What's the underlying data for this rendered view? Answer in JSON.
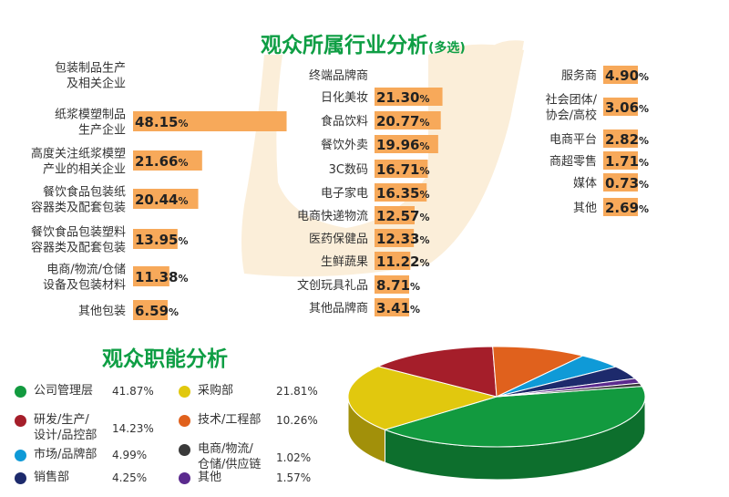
{
  "industry": {
    "title": "观众所属行业分析",
    "title_note": "(多选)",
    "bar_color": "#f7a95a",
    "label_color": "#333333",
    "chart_data": [
      {
        "type": "bar",
        "orientation": "horizontal",
        "categories": [
          "包装制品生产\n及相关企业",
          "纸浆模塑制品\n生产企业",
          "高度关注纸浆模塑\n产业的相关企业",
          "餐饮食品包装纸\n容器类及配套包装",
          "餐饮食品包装塑料\n容器类及配套包装",
          "电商/物流/仓储\n设备及包装材料",
          "其他包装"
        ],
        "values": [
          0,
          48.15,
          21.66,
          20.44,
          13.95,
          11.38,
          6.59
        ],
        "value_labels": [
          "",
          "48.15",
          "21.66",
          "20.44",
          "13.95",
          "11.38",
          "6.59"
        ],
        "unit": "%"
      },
      {
        "type": "bar",
        "orientation": "horizontal",
        "categories": [
          "终端品牌商",
          "日化美妆",
          "食品饮料",
          "餐饮外卖",
          "3C数码",
          "电子家电",
          "电商快递物流",
          "医药保健品",
          "生鲜蔬果",
          "文创玩具礼品",
          "其他品牌商"
        ],
        "values": [
          0,
          21.3,
          20.77,
          19.96,
          16.71,
          16.35,
          12.57,
          12.33,
          11.22,
          8.71,
          3.41
        ],
        "value_labels": [
          "",
          "21.30",
          "20.77",
          "19.96",
          "16.71",
          "16.35",
          "12.57",
          "12.33",
          "11.22",
          "8.71",
          "3.41"
        ],
        "unit": "%"
      },
      {
        "type": "bar",
        "orientation": "horizontal",
        "categories": [
          "服务商",
          "社会团体/\n协会/高校",
          "电商平台",
          "商超零售",
          "媒体",
          "其他"
        ],
        "values": [
          4.9,
          3.06,
          2.82,
          1.71,
          0.73,
          2.69
        ],
        "value_labels": [
          "4.90",
          "3.06",
          "2.82",
          "1.71",
          "0.73",
          "2.69"
        ],
        "unit": "%"
      }
    ]
  },
  "function": {
    "title": "观众职能分析",
    "chart_data": {
      "type": "pie",
      "style": "3d",
      "categories": [
        "公司管理层",
        "采购部",
        "研发/生产/\n设计/品控部",
        "技术/工程部",
        "市场/品牌部",
        "电商/物流/\n仓储/供应链",
        "销售部",
        "其他"
      ],
      "values": [
        41.87,
        21.81,
        14.23,
        10.26,
        4.99,
        1.02,
        4.25,
        1.57
      ],
      "value_labels": [
        "41.87",
        "21.81",
        "14.23",
        "10.26",
        "4.99",
        "1.02",
        "4.25",
        "1.57"
      ],
      "unit": "%",
      "colors": [
        "#129a3f",
        "#e1c80e",
        "#a51e2a",
        "#e0611d",
        "#0f9ad7",
        "#3a3a3a",
        "#1d2a6c",
        "#5b2a8e"
      ],
      "legend": "left"
    }
  }
}
